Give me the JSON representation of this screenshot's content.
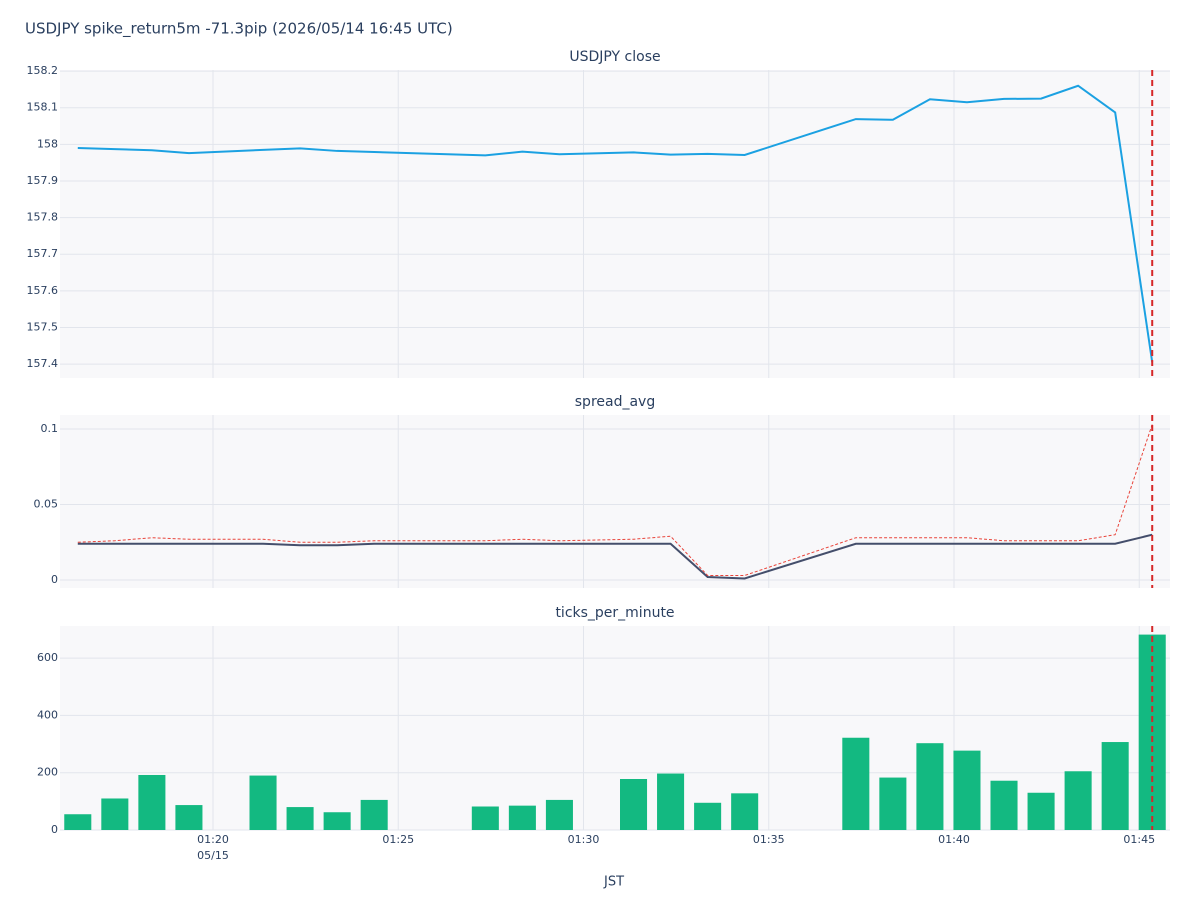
{
  "title": "USDJPY spike_return5m -71.3pip (2026/05/14 16:45 UTC)",
  "x_label": "JST",
  "x_date_label": "05/15",
  "chart_data": [
    {
      "type": "line",
      "title": "USDJPY close",
      "x": [
        16.35,
        17.35,
        18.35,
        19.35,
        21.35,
        22.35,
        23.35,
        24.35,
        27.35,
        28.35,
        29.35,
        31.35,
        32.35,
        33.35,
        34.35,
        37.35,
        38.35,
        39.35,
        40.35,
        41.35,
        42.35,
        43.35,
        44.35,
        45.35
      ],
      "series": [
        {
          "color": "#1ba1e2",
          "dash": "solid",
          "values": [
            157.99,
            157.987,
            157.984,
            157.976,
            157.985,
            157.989,
            157.982,
            157.979,
            157.97,
            157.98,
            157.973,
            157.978,
            157.972,
            157.974,
            157.971,
            158.069,
            158.067,
            158.123,
            158.115,
            158.124,
            158.125,
            158.16,
            158.087,
            157.405
          ]
        }
      ],
      "xlim": [
        15.87,
        45.83
      ],
      "ylim": [
        157.362,
        158.203
      ],
      "yticks": [
        157.4,
        157.5,
        157.6,
        157.7,
        157.8,
        157.9,
        158,
        158.1,
        158.2
      ],
      "event_x": 45.35,
      "grid": true
    },
    {
      "type": "line",
      "title": "spread_avg",
      "x": [
        16.35,
        17.35,
        18.35,
        19.35,
        21.35,
        22.35,
        23.35,
        24.35,
        27.35,
        28.35,
        29.35,
        31.35,
        32.35,
        33.35,
        34.35,
        37.35,
        38.35,
        39.35,
        40.35,
        41.35,
        42.35,
        43.35,
        44.35,
        45.35
      ],
      "series": [
        {
          "color": "#444e6b",
          "dash": "solid",
          "values": [
            0.024,
            0.024,
            0.024,
            0.024,
            0.024,
            0.023,
            0.023,
            0.024,
            0.024,
            0.024,
            0.024,
            0.024,
            0.024,
            0.002,
            0.001,
            0.024,
            0.024,
            0.024,
            0.024,
            0.024,
            0.024,
            0.024,
            0.024,
            0.03
          ]
        },
        {
          "color": "#e8443a",
          "dash": "dotted",
          "values": [
            0.025,
            0.026,
            0.028,
            0.027,
            0.027,
            0.025,
            0.025,
            0.026,
            0.026,
            0.027,
            0.026,
            0.027,
            0.029,
            0.003,
            0.003,
            0.028,
            0.028,
            0.028,
            0.028,
            0.026,
            0.026,
            0.026,
            0.03,
            0.103
          ]
        }
      ],
      "xlim": [
        15.87,
        45.83
      ],
      "ylim": [
        -0.0053,
        0.1093
      ],
      "yticks": [
        0,
        0.05,
        0.1
      ],
      "event_x": 45.35,
      "grid": true
    },
    {
      "type": "bar",
      "title": "ticks_per_minute",
      "x": [
        16.35,
        17.35,
        18.35,
        19.35,
        21.35,
        22.35,
        23.35,
        24.35,
        27.35,
        28.35,
        29.35,
        31.35,
        32.35,
        33.35,
        34.35,
        37.35,
        38.35,
        39.35,
        40.35,
        41.35,
        42.35,
        43.35,
        44.35,
        45.35
      ],
      "values": [
        55,
        110,
        192,
        87,
        190,
        80,
        62,
        105,
        82,
        85,
        105,
        178,
        197,
        95,
        128,
        322,
        183,
        303,
        277,
        172,
        130,
        205,
        307,
        682
      ],
      "color": "#13b981",
      "xlim": [
        15.87,
        45.83
      ],
      "ylim": [
        0,
        712
      ],
      "yticks": [
        0,
        200,
        400,
        600
      ],
      "xticks": [
        {
          "value": 20,
          "label": "01:20"
        },
        {
          "value": 25,
          "label": "01:25"
        },
        {
          "value": 30,
          "label": "01:30"
        },
        {
          "value": 35,
          "label": "01:35"
        },
        {
          "value": 40,
          "label": "01:40"
        },
        {
          "value": 45,
          "label": "01:45"
        }
      ],
      "event_x": 45.35,
      "grid": true
    }
  ]
}
